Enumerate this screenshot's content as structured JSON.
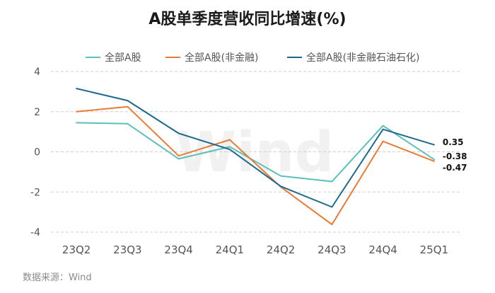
{
  "chart_data": {
    "type": "line",
    "title": "A股单季度营收同比增速(%)",
    "categories": [
      "23Q2",
      "23Q3",
      "23Q4",
      "24Q1",
      "24Q2",
      "24Q3",
      "24Q4",
      "25Q1"
    ],
    "ylim": [
      -4,
      4
    ],
    "yticks": [
      4,
      2,
      0,
      -2,
      -4
    ],
    "grid": "horizontal dashed",
    "legend_position": "top",
    "series": [
      {
        "name": "全部A股",
        "color": "#5bbfbb",
        "values": [
          1.45,
          1.4,
          -0.35,
          0.25,
          -1.2,
          -1.48,
          1.3,
          -0.38
        ]
      },
      {
        "name": "全部A股(非金融)",
        "color": "#ea7b34",
        "values": [
          2.0,
          2.25,
          -0.2,
          0.6,
          -1.75,
          -3.62,
          0.52,
          -0.47
        ]
      },
      {
        "name": "全部A股(非金融石油石化)",
        "color": "#1d6a8e",
        "values": [
          3.15,
          2.55,
          0.92,
          0.12,
          -1.72,
          -2.75,
          1.12,
          0.35
        ]
      }
    ],
    "end_labels": [
      "-0.38",
      "-0.47",
      "0.35"
    ]
  },
  "watermark": "Wind",
  "source": "数据来源：Wind"
}
